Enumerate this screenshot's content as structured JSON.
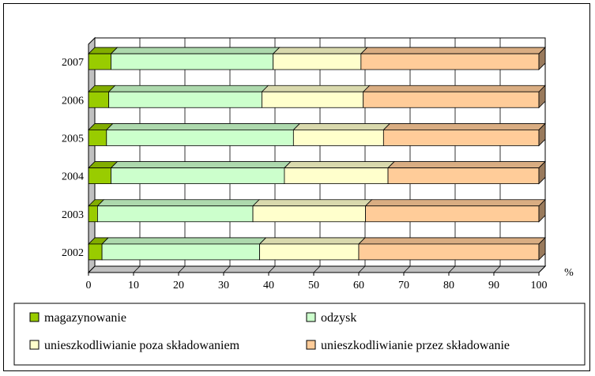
{
  "chart_data": {
    "type": "bar",
    "orientation": "horizontal",
    "stacked": true,
    "percent_stacked": true,
    "three_d": true,
    "categories": [
      "2002",
      "2003",
      "2004",
      "2005",
      "2006",
      "2007"
    ],
    "series": [
      {
        "name": "magazynowanie",
        "color": "#99CC00",
        "values": [
          3,
          2,
          5,
          4,
          4.5,
          5
        ]
      },
      {
        "name": "odzysk",
        "color": "#CCFFCC",
        "values": [
          35,
          34.5,
          38.5,
          41.5,
          34,
          36
        ]
      },
      {
        "name": "unieszkodliwianie poza składowaniem",
        "color": "#FFFFCC",
        "values": [
          22,
          25,
          23,
          20,
          22.5,
          19.5
        ]
      },
      {
        "name": "unieszkodliwianie przez składowanie",
        "color": "#FFCC99",
        "values": [
          40,
          38.5,
          33.5,
          34.5,
          39,
          39.5
        ]
      }
    ],
    "xlim": [
      0,
      100
    ],
    "xticks": [
      "0",
      "10",
      "20",
      "30",
      "40",
      "50",
      "60",
      "70",
      "80",
      "90",
      "100"
    ],
    "unit_label": "%",
    "grid": "vertical",
    "legend": "bottom"
  }
}
